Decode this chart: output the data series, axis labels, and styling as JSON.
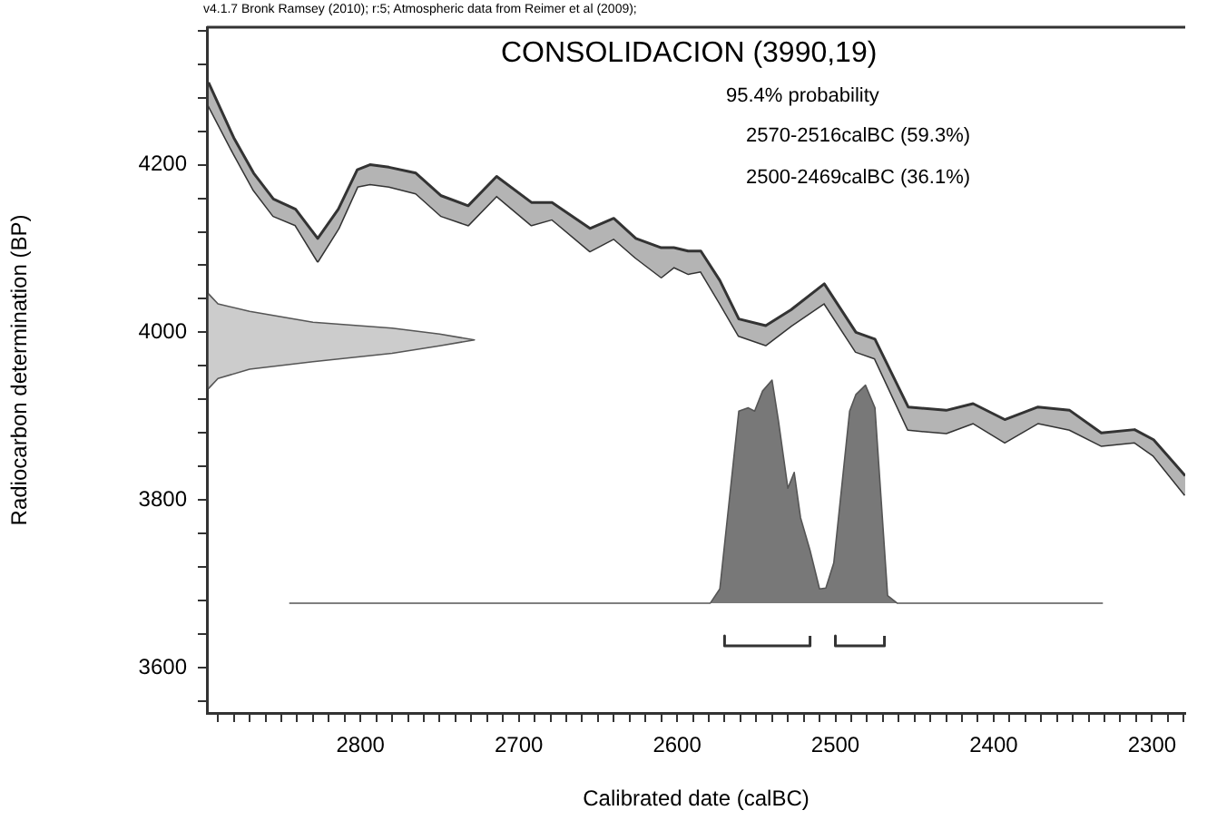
{
  "chart_data": {
    "type": "area",
    "title": "CONSOLIDACION (3990,19)",
    "xlabel": "Calibrated date (calBC)",
    "ylabel": "Radiocarbon determination (BP)",
    "annotations": [
      "v4.1.7 Bronk Ramsey (2010); r:5; Atmospheric data from Reimer et al (2009);",
      "95.4% probability",
      "2570-2516calBC (59.3%)",
      "2500-2469calBC (36.1%)"
    ],
    "xlim": [
      2897,
      2279
    ],
    "ylim": [
      3546,
      4364
    ],
    "xticks": [
      {
        "value": 2890,
        "label": null
      },
      {
        "value": 2880,
        "label": null
      },
      {
        "value": 2870,
        "label": null
      },
      {
        "value": 2860,
        "label": null
      },
      {
        "value": 2850,
        "label": null
      },
      {
        "value": 2840,
        "label": null
      },
      {
        "value": 2830,
        "label": null
      },
      {
        "value": 2820,
        "label": null
      },
      {
        "value": 2810,
        "label": null
      },
      2800,
      {
        "value": 2790,
        "label": null
      },
      {
        "value": 2780,
        "label": null
      },
      {
        "value": 2770,
        "label": null
      },
      {
        "value": 2760,
        "label": null
      },
      {
        "value": 2750,
        "label": null
      },
      {
        "value": 2740,
        "label": null
      },
      {
        "value": 2730,
        "label": null
      },
      {
        "value": 2720,
        "label": null
      },
      {
        "value": 2710,
        "label": null
      },
      2700,
      {
        "value": 2690,
        "label": null
      },
      {
        "value": 2680,
        "label": null
      },
      {
        "value": 2670,
        "label": null
      },
      {
        "value": 2660,
        "label": null
      },
      {
        "value": 2650,
        "label": null
      },
      {
        "value": 2640,
        "label": null
      },
      {
        "value": 2630,
        "label": null
      },
      {
        "value": 2620,
        "label": null
      },
      {
        "value": 2610,
        "label": null
      },
      2600,
      {
        "value": 2590,
        "label": null
      },
      {
        "value": 2580,
        "label": null
      },
      {
        "value": 2570,
        "label": null
      },
      {
        "value": 2560,
        "label": null
      },
      {
        "value": 2550,
        "label": null
      },
      {
        "value": 2540,
        "label": null
      },
      {
        "value": 2530,
        "label": null
      },
      {
        "value": 2520,
        "label": null
      },
      {
        "value": 2510,
        "label": null
      },
      2500,
      {
        "value": 2490,
        "label": null
      },
      {
        "value": 2480,
        "label": null
      },
      {
        "value": 2470,
        "label": null
      },
      {
        "value": 2460,
        "label": null
      },
      {
        "value": 2450,
        "label": null
      },
      {
        "value": 2440,
        "label": null
      },
      {
        "value": 2430,
        "label": null
      },
      {
        "value": 2420,
        "label": null
      },
      {
        "value": 2410,
        "label": null
      },
      2400,
      {
        "value": 2390,
        "label": null
      },
      {
        "value": 2380,
        "label": null
      },
      {
        "value": 2370,
        "label": null
      },
      {
        "value": 2360,
        "label": null
      },
      {
        "value": 2350,
        "label": null
      },
      {
        "value": 2340,
        "label": null
      },
      {
        "value": 2330,
        "label": null
      },
      {
        "value": 2320,
        "label": null
      },
      {
        "value": 2310,
        "label": null
      },
      2300,
      {
        "value": 2290,
        "label": null
      },
      {
        "value": 2280,
        "label": null
      }
    ],
    "yticks": [
      {
        "value": 3560,
        "label": null
      },
      3600,
      {
        "value": 3640,
        "label": null
      },
      {
        "value": 3680,
        "label": null
      },
      {
        "value": 3720,
        "label": null
      },
      {
        "value": 3760,
        "label": null
      },
      3800,
      {
        "value": 3840,
        "label": null
      },
      {
        "value": 3880,
        "label": null
      },
      {
        "value": 3920,
        "label": null
      },
      {
        "value": 3960,
        "label": null
      },
      4000,
      {
        "value": 4040,
        "label": null
      },
      {
        "value": 4080,
        "label": null
      },
      {
        "value": 4120,
        "label": null
      },
      {
        "value": 4160,
        "label": null
      },
      4200,
      {
        "value": 4240,
        "label": null
      },
      {
        "value": 4280,
        "label": null
      },
      {
        "value": 4320,
        "label": null
      },
      {
        "value": 4360,
        "label": null
      }
    ],
    "grid": false,
    "legend": false,
    "series": [
      {
        "type": "line",
        "color": "#333333",
        "x": [
          2896,
          2880,
          2867.5,
          2855,
          2841,
          2827,
          2814,
          2802,
          2794,
          2782,
          2765,
          2749,
          2732,
          2714,
          2692,
          2679,
          2655,
          2640,
          2626,
          2610,
          2602,
          2593,
          2585,
          2573,
          2561,
          2544,
          2528,
          2507,
          2487,
          2475,
          2454,
          2430,
          2413,
          2393,
          2372,
          2352,
          2332,
          2311,
          2299,
          2279
        ],
        "values": [
          4298,
          4232,
          4190,
          4159,
          4147,
          4112,
          4147,
          4194,
          4200,
          4197,
          4190,
          4163,
          4151,
          4186,
          4155,
          4155,
          4124,
          4136,
          4112,
          4101,
          4101,
          4097,
          4097,
          4062,
          4016,
          4008,
          4027,
          4058,
          4000,
          3992,
          3911,
          3907,
          3915,
          3896,
          3911,
          3907,
          3880,
          3884,
          3872,
          3829
        ]
      },
      {
        "type": "line",
        "color": "#333333",
        "x": [
          2896,
          2880,
          2867.5,
          2855,
          2841,
          2827,
          2814,
          2802,
          2794,
          2782,
          2765,
          2749,
          2732,
          2714,
          2692,
          2679,
          2655,
          2640,
          2626,
          2610,
          2602,
          2593,
          2585,
          2573,
          2561,
          2544,
          2528,
          2507,
          2487,
          2475,
          2454,
          2430,
          2413,
          2393,
          2372,
          2352,
          2332,
          2311,
          2299,
          2279
        ],
        "values": [
          4271,
          4213,
          4170,
          4139,
          4128,
          4085,
          4124,
          4174,
          4177,
          4174,
          4166,
          4139,
          4128,
          4163,
          4128,
          4135,
          4097,
          4112,
          4089,
          4066,
          4078,
          4070,
          4073,
          4035,
          3996,
          3985,
          4008,
          4035,
          3977,
          3969,
          3884,
          3880,
          3892,
          3869,
          3892,
          3884,
          3865,
          3869,
          3853,
          3806
        ],
        "upper": [
          4298,
          4232,
          4190,
          4159,
          4147,
          4112,
          4147,
          4194,
          4200,
          4197,
          4190,
          4163,
          4151,
          4186,
          4155,
          4155,
          4124,
          4136,
          4112,
          4101,
          4101,
          4097,
          4097,
          4062,
          4016,
          4008,
          4027,
          4058,
          4000,
          3992,
          3911,
          3907,
          3915,
          3896,
          3911,
          3907,
          3880,
          3884,
          3872,
          3829
        ],
        "lower": [
          4271,
          4213,
          4170,
          4139,
          4128,
          4085,
          4124,
          4174,
          4177,
          4174,
          4166,
          4139,
          4128,
          4163,
          4128,
          4135,
          4097,
          4112,
          4089,
          4066,
          4078,
          4070,
          4073,
          4035,
          3996,
          3985,
          4008,
          4035,
          3977,
          3969,
          3884,
          3880,
          3892,
          3869,
          3892,
          3884,
          3865,
          3869,
          3853,
          3806
        ]
      },
      {
        "type": "area",
        "color": "#cccccc",
        "x": [
          2896,
          2890,
          2870,
          2830,
          2780,
          2750,
          2728,
          2750,
          2780,
          2830,
          2870,
          2890,
          2896
        ],
        "values": [
          4046,
          4034,
          4025,
          4012,
          4005,
          3998,
          3991,
          3984,
          3975,
          3965,
          3956,
          3945,
          3933
        ]
      },
      {
        "type": "area",
        "color": "#787878",
        "x": [
          2845,
          2579,
          2573,
          2561,
          2555,
          2551,
          2546,
          2540,
          2536,
          2530,
          2526,
          2522,
          2516,
          2510,
          2506,
          2501,
          2491,
          2487,
          2481,
          2475,
          2467,
          2461,
          2331
        ],
        "values": [
          3677,
          3677,
          3694,
          3906,
          3910,
          3906,
          3930,
          3943,
          3895,
          3814,
          3833,
          3779,
          3740,
          3694,
          3695,
          3725,
          3906,
          3926,
          3937,
          3910,
          3686,
          3677,
          3677
        ]
      },
      {
        "type": "line",
        "color": "#333333",
        "x": [
          2570,
          2570,
          2516,
          2516
        ],
        "values": [
          3638,
          3626,
          3626,
          3638
        ]
      },
      {
        "type": "line",
        "color": "#333333",
        "x": [
          2500,
          2500,
          2469,
          2469
        ],
        "values": [
          3638,
          3626,
          3626,
          3638
        ]
      }
    ]
  }
}
